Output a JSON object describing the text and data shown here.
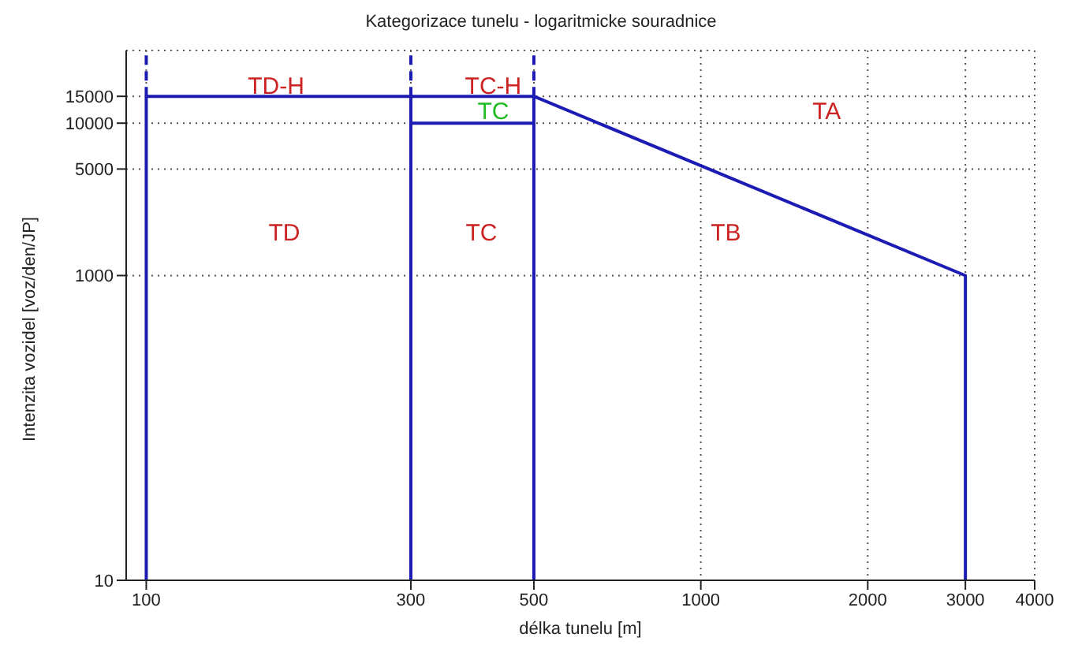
{
  "chart_data": {
    "type": "line",
    "title": "Kategorizace tunelu - logaritmicke souradnice",
    "xlabel": "délka tunelu [m]",
    "ylabel": "Intenzita vozidel [voz/den/JP]",
    "log": "xy",
    "grid": true,
    "legend": false,
    "marker": "none",
    "xlim": [
      92,
      4000
    ],
    "xticks": [
      100,
      300,
      500,
      1000,
      2000,
      3000,
      4000
    ],
    "ylim": [
      10,
      30000
    ],
    "yticks": [
      10,
      1000,
      5000,
      10000,
      15000
    ],
    "series": [
      {
        "color": "#1c1cb4",
        "x": [
          100,
          100,
          500,
          3000,
          3000
        ],
        "values": [
          10,
          15000,
          15000,
          1000,
          10
        ]
      },
      {
        "color": "#1c1cb4",
        "x": [
          300,
          300
        ],
        "values": [
          10,
          15000
        ]
      },
      {
        "color": "#1c1cb4",
        "x": [
          500,
          500
        ],
        "values": [
          10,
          15000
        ]
      },
      {
        "color": "#1c1cb4",
        "x": [
          300,
          500
        ],
        "values": [
          10000,
          10000
        ]
      },
      {
        "color": "#1c1cb4",
        "line_style": "dashed",
        "x": [
          100,
          100
        ],
        "values": [
          15000,
          30000
        ]
      },
      {
        "color": "#1c1cb4",
        "line_style": "dashed",
        "x": [
          300,
          300
        ],
        "values": [
          15000,
          30000
        ]
      },
      {
        "color": "#1c1cb4",
        "line_style": "dashed",
        "x": [
          500,
          500
        ],
        "values": [
          15000,
          30000
        ]
      }
    ],
    "annotations": [
      "TD-H",
      "TC-H",
      "TC",
      "TA",
      "TD",
      "TC",
      "TB"
    ]
  }
}
